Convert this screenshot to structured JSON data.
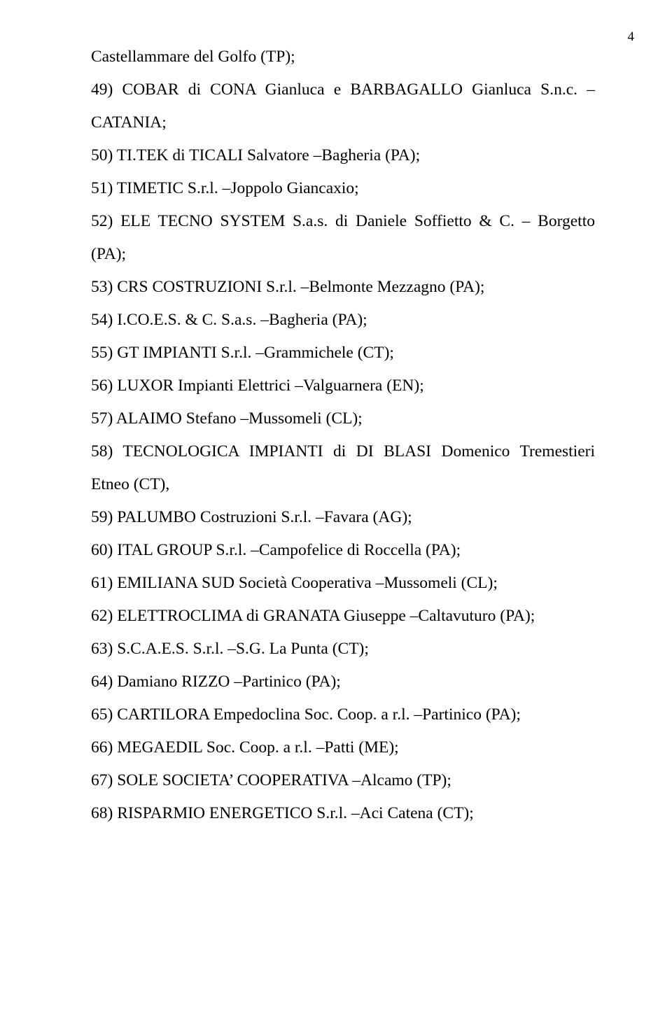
{
  "page_number": "4",
  "font": {
    "family": "Times New Roman",
    "size_pt": 12,
    "color": "#000000"
  },
  "background_color": "#ffffff",
  "items": [
    {
      "text": "Castellammare del Golfo (TP);"
    },
    {
      "text": "49) COBAR di CONA Gianluca e BARBAGALLO Gianluca S.n.c. –CATANIA;"
    },
    {
      "text": "50) TI.TEK di TICALI Salvatore –Bagheria (PA);"
    },
    {
      "text": "51) TIMETIC S.r.l. –Joppolo Giancaxio;"
    },
    {
      "text": "52) ELE TECNO SYSTEM S.a.s. di Daniele Soffietto & C. – Borgetto (PA);"
    },
    {
      "text": "53) CRS COSTRUZIONI S.r.l. –Belmonte Mezzagno (PA);"
    },
    {
      "text": "54) I.CO.E.S. & C. S.a.s. –Bagheria (PA);"
    },
    {
      "text": "55) GT IMPIANTI S.r.l. –Grammichele (CT);"
    },
    {
      "text": "56) LUXOR Impianti Elettrici –Valguarnera (EN);"
    },
    {
      "text": "57) ALAIMO Stefano –Mussomeli (CL);"
    },
    {
      "text": "58) TECNOLOGICA IMPIANTI di DI BLASI Domenico Tremestieri Etneo (CT),"
    },
    {
      "text": "59) PALUMBO Costruzioni S.r.l. –Favara (AG);"
    },
    {
      "text": "60) ITAL GROUP S.r.l. –Campofelice di Roccella (PA);"
    },
    {
      "text": "61) EMILIANA SUD Società Cooperativa –Mussomeli (CL);"
    },
    {
      "text": "62) ELETTROCLIMA di GRANATA Giuseppe –Caltavuturo (PA);"
    },
    {
      "text": "63) S.C.A.E.S. S.r.l. –S.G. La Punta (CT);"
    },
    {
      "text": "64) Damiano RIZZO –Partinico (PA);"
    },
    {
      "text": "65) CARTILORA Empedoclina Soc. Coop. a r.l. –Partinico (PA);"
    },
    {
      "text": "66) MEGAEDIL Soc. Coop. a r.l. –Patti (ME);"
    },
    {
      "text": "67) SOLE SOCIETA’ COOPERATIVA –Alcamo (TP);"
    },
    {
      "text": "68) RISPARMIO ENERGETICO S.r.l. –Aci Catena (CT);"
    }
  ]
}
